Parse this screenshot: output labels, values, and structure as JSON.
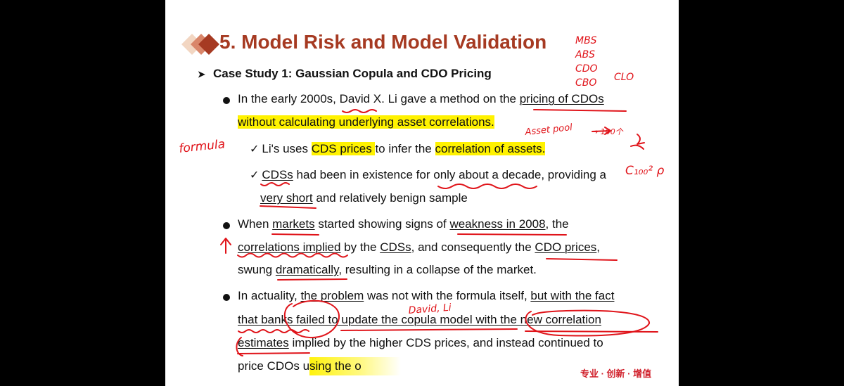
{
  "slide": {
    "title": "5. Model Risk and Model Validation",
    "subtitle": "Case Study 1: Gaussian Copula and CDO Pricing",
    "p1": {
      "a": "In the early 2000s, ",
      "b": "David X",
      "c": ". Li gave a method on the ",
      "d": "pricing of CDOs",
      "e": "without calculating underlying asset correlations."
    },
    "c1": {
      "a": "Li's uses ",
      "b": "CDS prices ",
      "c": "to infer the ",
      "d": "correlation of assets."
    },
    "c2": {
      "a": "CDSs",
      "b": " had been in existence for ",
      "c": "only about a decade",
      "d": ", providing a",
      "e": "very short",
      "f": " and relatively benign sample"
    },
    "p2": {
      "a": "When ",
      "b": "markets",
      "c": " started showing signs of ",
      "d": "weakness in 2008",
      "e": ", the",
      "f": "correlations implied",
      "g": " by the ",
      "h": "CDSs",
      "i": ", and consequently the ",
      "j": "CDO prices",
      "k": ",",
      "l": "swung ",
      "m": "dramatically",
      "n": ", resulting in a collapse of the market."
    },
    "p3": {
      "a": "In actuality, ",
      "b": "the problem",
      "c": " was not with the formula itself, ",
      "d": "but with the fact",
      "e": "that banks failed to update the copula model with the new correlation",
      "f": "estimates",
      "g": " implied by the higher CDS prices, and instead continued to",
      "h": "price CDOs using the o"
    },
    "footer": "专业 · 创新 · 增值"
  },
  "handwriting": {
    "mbs": "MBS",
    "abs": "ABS",
    "cdo": "CDO",
    "cbo": "CBO",
    "clo": "CLO",
    "formula": "formula",
    "asset_pool": "Asset pool",
    "arrow_num": "→ 100个",
    "combination": "C₁₀₀² ρ",
    "david_li": "David, Li"
  },
  "colors": {
    "title": "#a63a22",
    "highlight": "#fff200",
    "ink": "#e0141a",
    "footer": "#d01f2a"
  }
}
